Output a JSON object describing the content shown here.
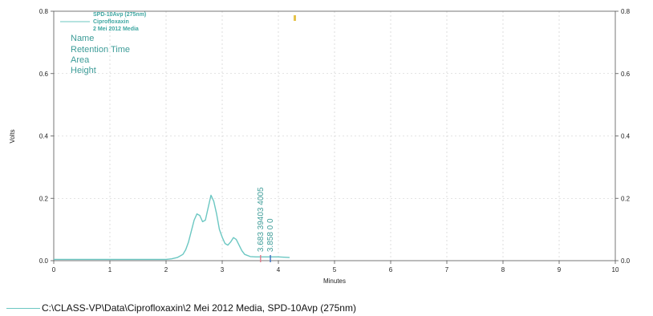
{
  "chart_data": {
    "type": "line",
    "xlabel": "Minutes",
    "ylabel": "Volts",
    "xlim": [
      0,
      10
    ],
    "ylim": [
      0,
      0.8
    ],
    "x_ticks": [
      0,
      1,
      2,
      3,
      4,
      5,
      6,
      7,
      8,
      9,
      10
    ],
    "y_ticks": [
      0.0,
      0.2,
      0.4,
      0.6,
      0.8
    ],
    "y_tick_labels": [
      "0.0",
      "0.2",
      "0.4",
      "0.6",
      "0.8"
    ],
    "y2_tick_labels": [
      "0.0",
      "0.2",
      "0.4",
      "0.6",
      "0.8"
    ],
    "grid": true,
    "legend_position": "top-left",
    "legend_box": {
      "line1": "SPD-10Avp (275nm)",
      "line2": "Ciprofloxaxin",
      "line3": "2 Mei 2012 Media"
    },
    "field_labels": [
      "Name",
      "Retention Time",
      "Area",
      "Height"
    ],
    "series": [
      {
        "name": "SPD-10Avp (275nm)",
        "color": "#6bc7c2",
        "x": [
          0.0,
          0.5,
          1.0,
          1.5,
          2.0,
          2.1,
          2.2,
          2.3,
          2.35,
          2.4,
          2.45,
          2.5,
          2.55,
          2.6,
          2.65,
          2.7,
          2.75,
          2.8,
          2.85,
          2.9,
          2.95,
          3.0,
          3.05,
          3.1,
          3.15,
          3.2,
          3.25,
          3.3,
          3.35,
          3.4,
          3.5,
          3.6,
          3.7,
          3.8,
          3.9,
          4.0,
          4.1,
          4.2
        ],
        "y": [
          0.004,
          0.004,
          0.004,
          0.004,
          0.004,
          0.006,
          0.01,
          0.02,
          0.035,
          0.06,
          0.095,
          0.13,
          0.15,
          0.145,
          0.125,
          0.13,
          0.17,
          0.21,
          0.19,
          0.15,
          0.1,
          0.075,
          0.055,
          0.05,
          0.06,
          0.074,
          0.068,
          0.05,
          0.032,
          0.02,
          0.013,
          0.012,
          0.012,
          0.012,
          0.012,
          0.012,
          0.011,
          0.01
        ]
      }
    ],
    "annotations": [
      {
        "x": 3.683,
        "text": "3.683  39403  4005"
      },
      {
        "x": 3.858,
        "text": "3.858  0  0"
      }
    ],
    "footer_legend": "C:\\CLASS-VP\\Data\\Ciprofloxaxin\\2 Mei 2012 Media, SPD-10Avp (275nm)"
  }
}
